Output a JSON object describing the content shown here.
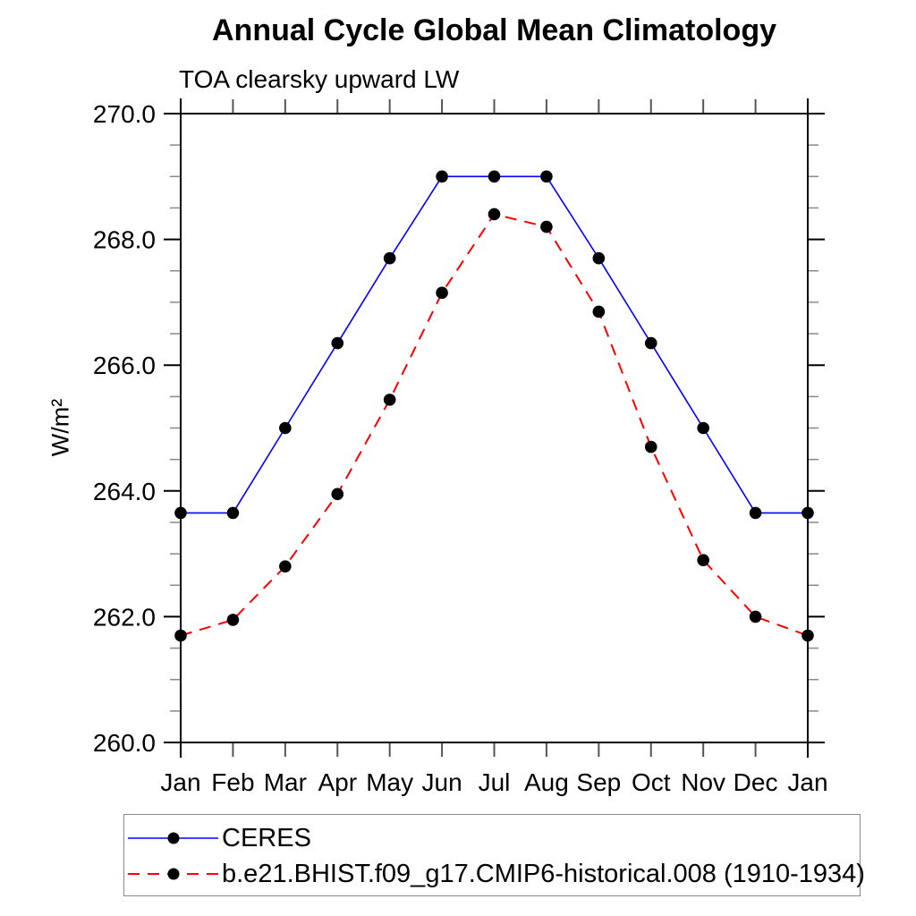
{
  "chart_data": {
    "type": "line",
    "title": "Annual Cycle Global Mean Climatology",
    "subtitle": "TOA clearsky upward LW",
    "ylabel": "W/m²",
    "xlabel": "",
    "categories": [
      "Jan",
      "Feb",
      "Mar",
      "Apr",
      "May",
      "Jun",
      "Jul",
      "Aug",
      "Sep",
      "Oct",
      "Nov",
      "Dec",
      "Jan"
    ],
    "ylim": [
      260.0,
      270.0
    ],
    "y_major_ticks": [
      260.0,
      262.0,
      264.0,
      266.0,
      268.0,
      270.0
    ],
    "y_tick_labels": [
      "260.0",
      "262.0",
      "264.0",
      "266.0",
      "268.0",
      "270.0"
    ],
    "y_minor_step": 0.5,
    "grid": false,
    "legend_position": "bottom-left-box",
    "axis_color": "#000000",
    "series": [
      {
        "name": "CERES",
        "line_color": "#0000ff",
        "line_style": "solid",
        "marker": "filled-circle",
        "marker_color": "#000000",
        "values": [
          263.65,
          263.65,
          265.0,
          266.35,
          267.7,
          269.0,
          269.0,
          269.0,
          267.7,
          266.35,
          265.0,
          263.65,
          263.65
        ]
      },
      {
        "name": "b.e21.BHIST.f09_g17.CMIP6-historical.008 (1910-1934)",
        "line_color": "#ff0000",
        "line_style": "dashed",
        "marker": "filled-circle",
        "marker_color": "#000000",
        "values": [
          261.7,
          261.95,
          262.8,
          263.95,
          265.45,
          267.15,
          268.4,
          268.2,
          266.85,
          264.7,
          262.9,
          262.0,
          261.7
        ]
      }
    ]
  }
}
